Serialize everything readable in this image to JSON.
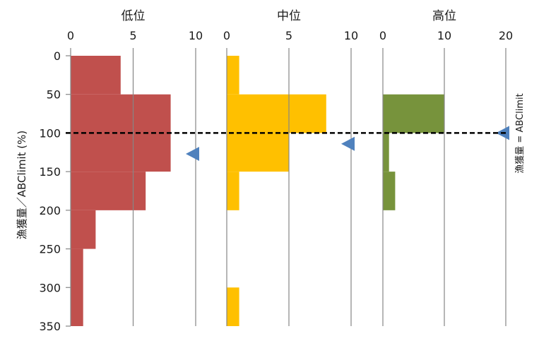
{
  "chart_data": {
    "type": "bar",
    "orientation": "horizontal",
    "y_axis": {
      "label": "漁獲量／ABClimit (%)",
      "range": [
        0,
        350
      ],
      "ticks": [
        0,
        50,
        100,
        150,
        200,
        250,
        300,
        350
      ],
      "bin_width": 25
    },
    "reference_line": {
      "value": 100,
      "label": "漁獲量 = ABClimit",
      "style": "dashed"
    },
    "panels": [
      {
        "title": "低位",
        "color": "#C0504D",
        "xlim": [
          0,
          10
        ],
        "xticks": [
          0,
          5,
          10
        ],
        "bins": [
          {
            "from": 0,
            "to": 50,
            "value": 4
          },
          {
            "from": 50,
            "to": 150,
            "value": 8
          },
          {
            "from": 150,
            "to": 200,
            "value": 6
          },
          {
            "from": 200,
            "to": 250,
            "value": 2
          },
          {
            "from": 250,
            "to": 350,
            "value": 1
          }
        ],
        "marker_y": 127
      },
      {
        "title": "中位",
        "color": "#FFC000",
        "xlim": [
          0,
          10
        ],
        "xticks": [
          0,
          5,
          10
        ],
        "bins": [
          {
            "from": 0,
            "to": 50,
            "value": 1
          },
          {
            "from": 50,
            "to": 100,
            "value": 8
          },
          {
            "from": 100,
            "to": 150,
            "value": 5
          },
          {
            "from": 150,
            "to": 200,
            "value": 1
          },
          {
            "from": 300,
            "to": 350,
            "value": 1
          }
        ],
        "marker_y": 114
      },
      {
        "title": "高位",
        "color": "#77933C",
        "xlim": [
          0,
          20
        ],
        "xticks": [
          0,
          10,
          20
        ],
        "bins": [
          {
            "from": 50,
            "to": 100,
            "value": 10
          },
          {
            "from": 100,
            "to": 150,
            "value": 1
          },
          {
            "from": 150,
            "to": 200,
            "value": 2
          }
        ],
        "marker_y": 100
      }
    ],
    "marker_color": "#4F81BD",
    "grid": "vertical"
  }
}
